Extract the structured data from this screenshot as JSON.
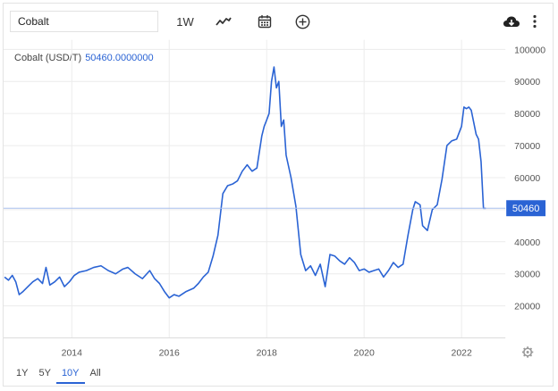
{
  "toolbar": {
    "search_value": "Cobalt",
    "interval_label": "1W"
  },
  "legend": {
    "label": "Cobalt (USD/T)",
    "value": "50460.0000000"
  },
  "range_buttons": [
    "1Y",
    "5Y",
    "10Y",
    "All"
  ],
  "active_range": "10Y",
  "icons": {
    "chart_type": "line-chart-icon",
    "calendar": "calendar-icon",
    "compare": "plus-circle-icon",
    "download": "cloud-download-icon",
    "more": "vertical-ellipsis-icon",
    "settings": "gear-icon"
  },
  "colors": {
    "line": "#2a63d4",
    "last_price_badge": "#2a63d4"
  },
  "chart_data": {
    "type": "line",
    "title": "Cobalt (USD/T)",
    "last_value": 50460,
    "last_value_label": "50460",
    "xlim": [
      2012.6,
      2022.9
    ],
    "ylim": [
      10000,
      103000
    ],
    "x_ticks": [
      2014,
      2016,
      2018,
      2020,
      2022
    ],
    "x_tick_labels": [
      "2014",
      "2016",
      "2018",
      "2020",
      "2022"
    ],
    "y_ticks": [
      20000,
      30000,
      40000,
      50000,
      60000,
      70000,
      80000,
      90000,
      100000
    ],
    "y_tick_labels": [
      "20000",
      "30000",
      "40000",
      "50000",
      "60000",
      "70000",
      "80000",
      "90000",
      "100000"
    ],
    "grid": true,
    "y_axis_position": "right",
    "series": [
      {
        "x": [
          2012.62,
          2012.7,
          2012.78,
          2012.85,
          2012.92,
          2013.0,
          2013.1,
          2013.2,
          2013.3,
          2013.4,
          2013.47,
          2013.55,
          2013.65,
          2013.75,
          2013.85,
          2013.95,
          2014.05,
          2014.15,
          2014.3,
          2014.45,
          2014.6,
          2014.75,
          2014.9,
          2015.05,
          2015.15,
          2015.3,
          2015.45,
          2015.6,
          2015.7,
          2015.8,
          2015.9,
          2016.0,
          2016.1,
          2016.2,
          2016.35,
          2016.5,
          2016.6,
          2016.7,
          2016.8,
          2016.9,
          2017.0,
          2017.1,
          2017.2,
          2017.3,
          2017.4,
          2017.5,
          2017.6,
          2017.7,
          2017.8,
          2017.9,
          2017.95,
          2018.0,
          2018.05,
          2018.1,
          2018.15,
          2018.2,
          2018.25,
          2018.3,
          2018.35,
          2018.4,
          2018.5,
          2018.6,
          2018.7,
          2018.8,
          2018.9,
          2019.0,
          2019.1,
          2019.2,
          2019.3,
          2019.4,
          2019.5,
          2019.6,
          2019.7,
          2019.8,
          2019.9,
          2020.0,
          2020.1,
          2020.2,
          2020.3,
          2020.4,
          2020.5,
          2020.6,
          2020.7,
          2020.8,
          2020.9,
          2021.0,
          2021.05,
          2021.1,
          2021.15,
          2021.2,
          2021.3,
          2021.4,
          2021.5,
          2021.6,
          2021.7,
          2021.8,
          2021.9,
          2022.0,
          2022.05,
          2022.1,
          2022.15,
          2022.2,
          2022.3,
          2022.35,
          2022.4,
          2022.45,
          2022.5
        ],
        "y": [
          29000,
          28000,
          29500,
          27500,
          23500,
          24500,
          26000,
          27500,
          28500,
          27000,
          32000,
          26500,
          27500,
          29000,
          26000,
          27500,
          29500,
          30500,
          31000,
          32000,
          32500,
          31000,
          30000,
          31500,
          32000,
          30000,
          28500,
          31000,
          28500,
          27000,
          24500,
          22500,
          23500,
          23000,
          24500,
          25500,
          27000,
          29000,
          30500,
          35500,
          42000,
          55000,
          57500,
          58000,
          59000,
          62000,
          64000,
          62000,
          63000,
          73000,
          76000,
          78000,
          80000,
          90000,
          94500,
          88000,
          90000,
          76000,
          78000,
          67000,
          60000,
          51000,
          36000,
          31000,
          32500,
          29500,
          33000,
          26000,
          36000,
          35500,
          34000,
          33000,
          35000,
          33500,
          31000,
          31500,
          30500,
          31000,
          31500,
          29000,
          31000,
          33500,
          32000,
          33000,
          42000,
          50000,
          52500,
          52000,
          51500,
          45000,
          43500,
          50000,
          51500,
          59500,
          70000,
          71500,
          72000,
          76000,
          82000,
          81500,
          82000,
          81000,
          73500,
          72000,
          65000,
          50460,
          50460
        ]
      }
    ]
  }
}
